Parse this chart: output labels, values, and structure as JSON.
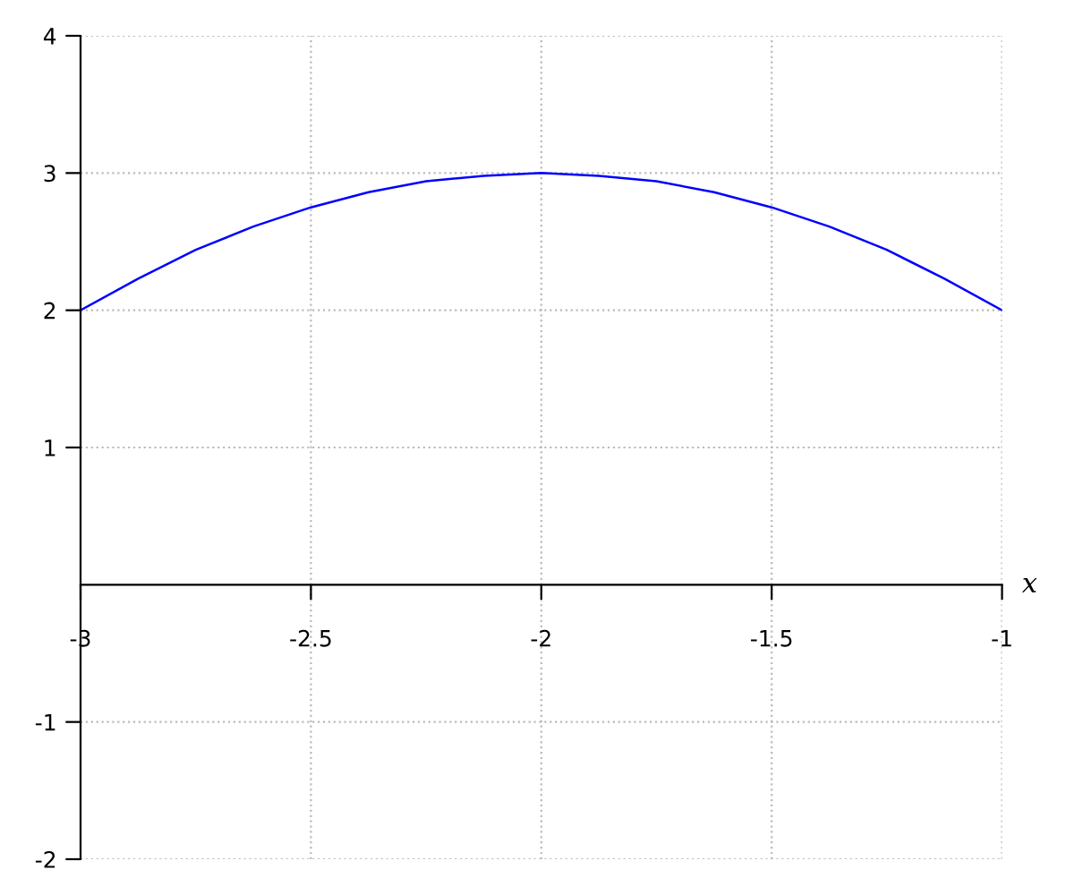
{
  "chart_data": {
    "type": "line",
    "xlabel": "x",
    "series": [
      {
        "color": "#0000ff",
        "x": [
          -3,
          -2.875,
          -2.75,
          -2.625,
          -2.5,
          -2.375,
          -2.25,
          -2.125,
          -2,
          -1.875,
          -1.75,
          -1.625,
          -1.5,
          -1.375,
          -1.25,
          -1.125,
          -1
        ],
        "values": [
          2,
          2.23,
          2.44,
          2.61,
          2.75,
          2.86,
          2.94,
          2.98,
          3,
          2.98,
          2.94,
          2.86,
          2.75,
          2.61,
          2.44,
          2.23,
          2
        ]
      }
    ],
    "xlim": [
      -3,
      -1
    ],
    "ylim": [
      -2,
      4
    ],
    "xticks": [
      -3,
      -2.5,
      -2,
      -1.5,
      -1
    ],
    "yticks": [
      -2,
      -1,
      1,
      2,
      3,
      4
    ],
    "grid": true,
    "line_style": "solid",
    "marker": "none"
  }
}
